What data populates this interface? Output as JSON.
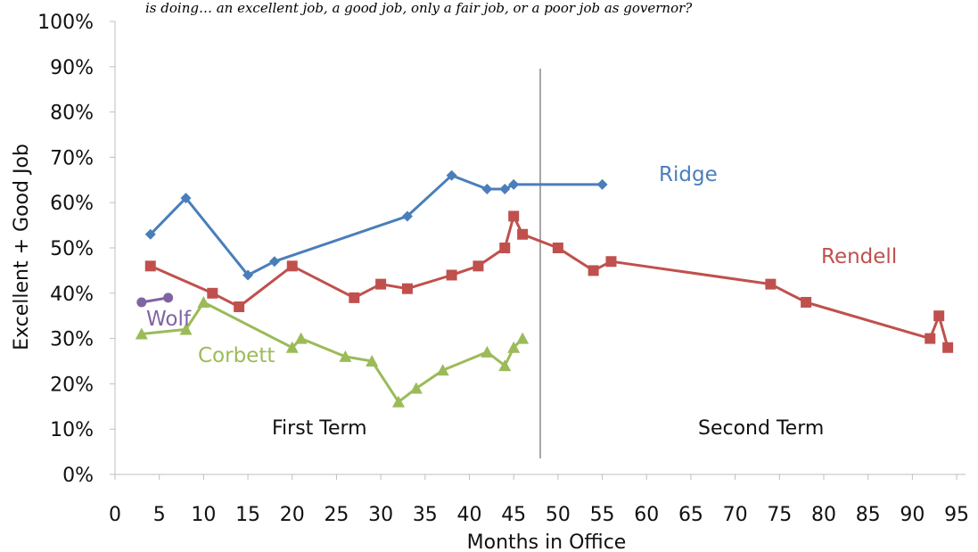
{
  "chart_data": {
    "type": "line",
    "title": "",
    "subtitle": "is doing… an excellent job, a good job, only a fair job, or a poor job as governor?",
    "xlabel": "Months in Office",
    "ylabel": "Excellent + Good Job",
    "xlim": [
      0,
      96
    ],
    "ylim": [
      0,
      100
    ],
    "x_ticks": [
      0,
      5,
      10,
      15,
      20,
      25,
      30,
      35,
      40,
      45,
      50,
      55,
      60,
      65,
      70,
      75,
      80,
      85,
      90,
      95
    ],
    "y_ticks": [
      0,
      10,
      20,
      30,
      40,
      50,
      60,
      70,
      80,
      90,
      100
    ],
    "y_tick_labels": [
      "0%",
      "10%",
      "20%",
      "30%",
      "40%",
      "50%",
      "60%",
      "70%",
      "80%",
      "90%",
      "100%"
    ],
    "grid": false,
    "series": [
      {
        "name": "Ridge",
        "color": "#4a7ebb",
        "marker": "diamond",
        "points": [
          [
            4,
            53
          ],
          [
            8,
            61
          ],
          [
            15,
            44
          ],
          [
            18,
            47
          ],
          [
            33,
            57
          ],
          [
            38,
            66
          ],
          [
            42,
            63
          ],
          [
            44,
            63
          ],
          [
            45,
            64
          ],
          [
            55,
            64
          ]
        ]
      },
      {
        "name": "Rendell",
        "color": "#c0504d",
        "marker": "square",
        "points": [
          [
            4,
            46
          ],
          [
            11,
            40
          ],
          [
            14,
            37
          ],
          [
            20,
            46
          ],
          [
            27,
            39
          ],
          [
            30,
            42
          ],
          [
            33,
            41
          ],
          [
            38,
            44
          ],
          [
            41,
            46
          ],
          [
            44,
            50
          ],
          [
            45,
            57
          ],
          [
            46,
            53
          ],
          [
            50,
            50
          ],
          [
            54,
            45
          ],
          [
            56,
            47
          ],
          [
            74,
            42
          ],
          [
            78,
            38
          ],
          [
            92,
            30
          ],
          [
            93,
            35
          ],
          [
            94,
            28
          ]
        ]
      },
      {
        "name": "Corbett",
        "color": "#9bbb59",
        "marker": "triangle",
        "points": [
          [
            3,
            31
          ],
          [
            8,
            32
          ],
          [
            10,
            38
          ],
          [
            20,
            28
          ],
          [
            21,
            30
          ],
          [
            26,
            26
          ],
          [
            29,
            25
          ],
          [
            32,
            16
          ],
          [
            34,
            19
          ],
          [
            37,
            23
          ],
          [
            42,
            27
          ],
          [
            44,
            24
          ],
          [
            45,
            28
          ],
          [
            46,
            30
          ]
        ]
      },
      {
        "name": "Wolf",
        "color": "#8064a2",
        "marker": "circle",
        "points": [
          [
            3,
            38
          ],
          [
            6,
            39
          ]
        ]
      }
    ],
    "annotations": {
      "divider_x": 48,
      "first_term_label": "First Term",
      "second_term_label": "Second Term"
    }
  }
}
